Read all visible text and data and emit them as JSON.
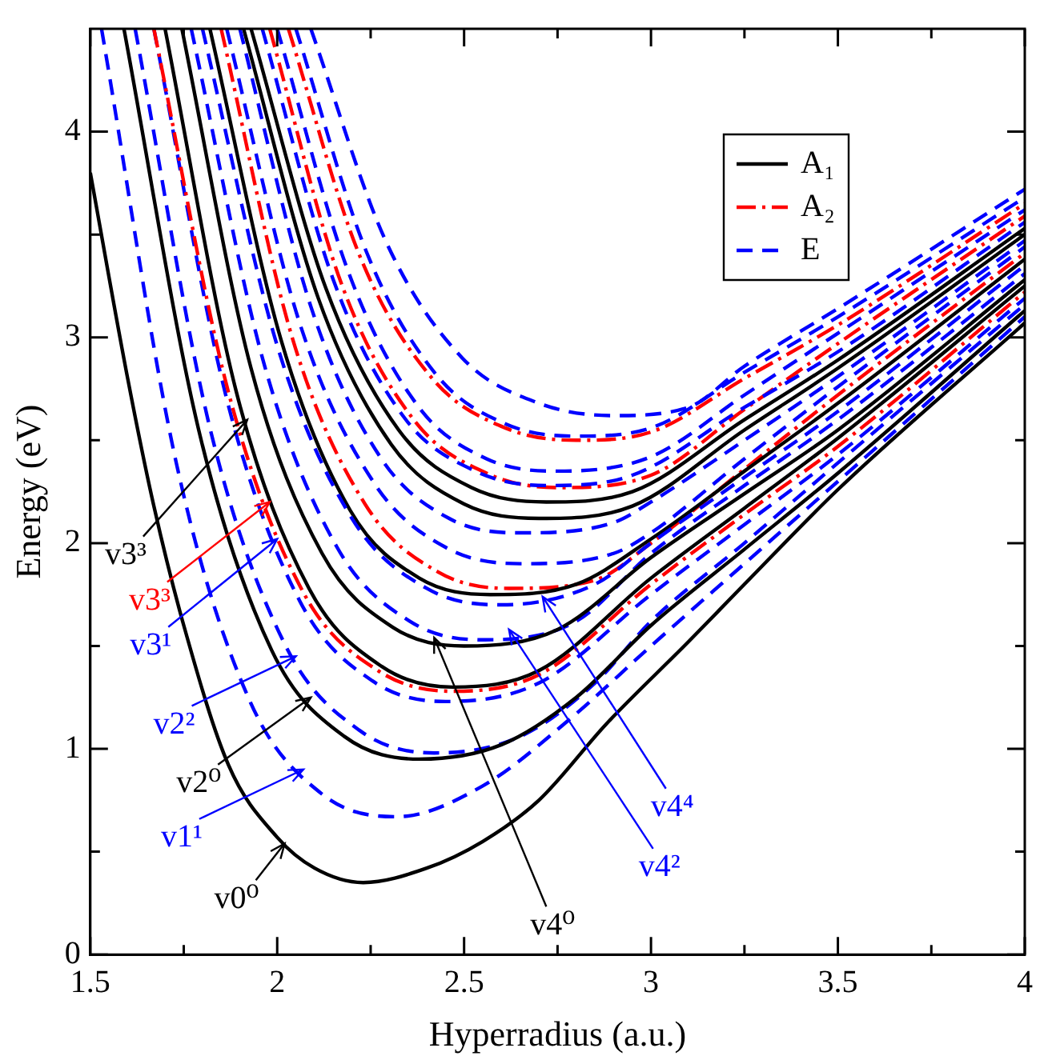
{
  "chart_data": {
    "type": "line",
    "xlabel": "Hyperradius (a.u.)",
    "ylabel": "Energy (eV)",
    "xlim": [
      1.5,
      4
    ],
    "ylim": [
      0,
      4.5
    ],
    "xticks": [
      1.5,
      {
        "value": 1.75,
        "label": null
      },
      2,
      {
        "value": 2.25,
        "label": null
      },
      2.5,
      {
        "value": 2.75,
        "label": null
      },
      3,
      {
        "value": 3.25,
        "label": null
      },
      3.5,
      {
        "value": 3.75,
        "label": null
      },
      4
    ],
    "yticks": [
      0,
      {
        "value": 0.5,
        "label": null
      },
      1,
      {
        "value": 1.5,
        "label": null
      },
      2,
      {
        "value": 2.5,
        "label": null
      },
      3,
      {
        "value": 3.5,
        "label": null
      },
      4
    ],
    "grid": false,
    "legend": "top right",
    "marker": "none",
    "series": [
      {
        "name": "A₁",
        "color": "#000000",
        "line_style": "solid",
        "x": [
          1.5,
          1.6,
          1.67,
          1.75,
          1.87,
          2.0,
          2.1,
          2.23,
          2.4,
          2.55,
          2.7,
          2.88,
          3.1,
          3.25,
          3.5,
          4.0
        ],
        "values": [
          3.8,
          2.8,
          2.18,
          1.6,
          0.92,
          0.57,
          0.42,
          0.35,
          0.42,
          0.55,
          0.75,
          1.12,
          1.52,
          1.8,
          2.26,
          3.07
        ]
      },
      {
        "name": "A₂",
        "color": "#ff0000",
        "line_style": "dashdot",
        "x": [
          1.67,
          1.87,
          2.07,
          2.27,
          2.47,
          2.7,
          3.0,
          3.25,
          3.5,
          4.0
        ],
        "values": [
          4.5,
          2.73,
          1.76,
          1.38,
          1.28,
          1.36,
          1.8,
          2.14,
          2.47,
          3.22
        ]
      },
      {
        "name": "E",
        "color": "#0000ff",
        "line_style": "dashed",
        "x": [
          1.53,
          1.73,
          1.925,
          2.12,
          2.32,
          2.55,
          2.78,
          3.0,
          3.25,
          3.5,
          4.0
        ],
        "values": [
          4.5,
          2.39,
          1.24,
          0.78,
          0.67,
          0.82,
          1.14,
          1.5,
          1.9,
          2.3,
          3.1
        ]
      },
      {
        "color": "#000000",
        "line_style": "solid",
        "x": [
          1.59,
          1.79,
          1.985,
          2.18,
          2.38,
          2.6,
          2.8,
          3.0,
          3.25,
          3.5,
          4.0
        ],
        "values": [
          4.5,
          2.55,
          1.48,
          1.06,
          0.95,
          1.02,
          1.25,
          1.6,
          1.97,
          2.34,
          3.13
        ]
      },
      {
        "color": "#0000ff",
        "line_style": "dashed",
        "x": [
          1.62,
          1.82,
          2.02,
          2.22,
          2.42,
          2.65,
          2.85,
          3.0,
          3.25,
          3.5,
          4.0
        ],
        "values": [
          4.5,
          2.56,
          1.51,
          1.09,
          0.98,
          1.06,
          1.32,
          1.62,
          2.0,
          2.39,
          3.16
        ]
      },
      {
        "color": "#0000ff",
        "line_style": "dashed",
        "x": [
          1.67,
          1.865,
          2.06,
          2.255,
          2.45,
          2.7,
          3.0,
          3.25,
          3.5,
          4.0
        ],
        "values": [
          4.5,
          2.7,
          1.72,
          1.33,
          1.23,
          1.32,
          1.75,
          2.09,
          2.43,
          3.19
        ]
      },
      {
        "color": "#000000",
        "line_style": "solid",
        "x": [
          1.7,
          1.89,
          2.085,
          2.28,
          2.47,
          2.7,
          3.0,
          3.25,
          3.5,
          4.0
        ],
        "values": [
          4.5,
          2.74,
          1.78,
          1.4,
          1.3,
          1.38,
          1.83,
          2.17,
          2.51,
          3.25
        ]
      },
      {
        "color": "#000000",
        "line_style": "solid",
        "x": [
          1.745,
          1.93,
          2.12,
          2.31,
          2.5,
          2.75,
          3.0,
          3.25,
          3.5,
          4.0
        ],
        "values": [
          4.5,
          2.85,
          1.95,
          1.59,
          1.5,
          1.58,
          1.93,
          2.24,
          2.55,
          3.28
        ]
      },
      {
        "color": "#0000ff",
        "line_style": "dashed",
        "x": [
          1.77,
          1.965,
          2.16,
          2.355,
          2.55,
          2.8,
          3.0,
          3.25,
          3.5,
          4.0
        ],
        "values": [
          4.5,
          2.87,
          1.98,
          1.62,
          1.53,
          1.62,
          1.95,
          2.28,
          2.6,
          3.31
        ]
      },
      {
        "color": "#0000ff",
        "line_style": "dashed",
        "x": [
          1.8,
          2.0,
          2.2,
          2.4,
          2.6,
          2.85,
          3.0,
          3.25,
          3.5,
          4.0
        ],
        "values": [
          4.5,
          2.96,
          2.12,
          1.78,
          1.7,
          1.8,
          2.0,
          2.32,
          2.64,
          3.35
        ]
      },
      {
        "color": "#000000",
        "line_style": "solid",
        "x": [
          1.82,
          2.01,
          2.195,
          2.38,
          2.57,
          2.8,
          3.0,
          3.25,
          3.5,
          4.0
        ],
        "values": [
          4.5,
          2.99,
          2.16,
          1.83,
          1.75,
          1.8,
          2.02,
          2.35,
          2.68,
          3.38
        ]
      },
      {
        "color": "#ff0000",
        "line_style": "dashdot",
        "x": [
          1.85,
          2.04,
          2.235,
          2.43,
          2.62,
          2.85,
          3.0,
          3.25,
          3.5,
          4.0
        ],
        "values": [
          4.5,
          3.0,
          2.19,
          1.86,
          1.78,
          1.82,
          2.0,
          2.36,
          2.72,
          3.41
        ]
      },
      {
        "color": "#0000ff",
        "line_style": "dashed",
        "x": [
          1.865,
          2.06,
          2.26,
          2.45,
          2.65,
          2.9,
          3.0,
          3.25,
          3.5,
          4.0
        ],
        "values": [
          4.5,
          3.07,
          2.29,
          1.98,
          1.9,
          1.95,
          2.05,
          2.41,
          2.76,
          3.44
        ]
      },
      {
        "color": "#0000ff",
        "line_style": "dashed",
        "x": [
          1.9,
          2.09,
          2.275,
          2.46,
          2.65,
          2.9,
          3.0,
          3.25,
          3.5,
          4.0
        ],
        "values": [
          4.5,
          3.15,
          2.42,
          2.12,
          2.05,
          2.1,
          2.2,
          2.5,
          2.81,
          3.47
        ]
      },
      {
        "color": "#000000",
        "line_style": "solid",
        "x": [
          1.91,
          2.11,
          2.305,
          2.5,
          2.7,
          2.95,
          3.25,
          3.5,
          4.0
        ],
        "values": [
          4.5,
          3.19,
          2.48,
          2.19,
          2.12,
          2.18,
          2.55,
          2.85,
          3.5
        ]
      },
      {
        "color": "#000000",
        "line_style": "solid",
        "x": [
          1.93,
          2.13,
          2.325,
          2.52,
          2.72,
          2.95,
          3.25,
          3.5,
          4.0
        ],
        "values": [
          4.5,
          3.24,
          2.55,
          2.27,
          2.2,
          2.25,
          2.6,
          2.89,
          3.53
        ]
      },
      {
        "color": "#0000ff",
        "line_style": "dashed",
        "x": [
          1.96,
          2.15,
          2.34,
          2.53,
          2.72,
          2.95,
          3.25,
          3.5,
          4.0
        ],
        "values": [
          4.5,
          3.28,
          2.61,
          2.35,
          2.28,
          2.33,
          2.66,
          2.93,
          3.56
        ]
      },
      {
        "color": "#ff0000",
        "line_style": "dashdot",
        "x": [
          1.98,
          2.17,
          2.365,
          2.56,
          2.75,
          3.0,
          3.25,
          3.5,
          4.0
        ],
        "values": [
          4.5,
          3.27,
          2.6,
          2.34,
          2.27,
          2.33,
          2.65,
          2.97,
          3.59
        ]
      },
      {
        "color": "#0000ff",
        "line_style": "dashed",
        "x": [
          2.0,
          2.19,
          2.375,
          2.56,
          2.75,
          3.0,
          3.25,
          3.5,
          4.0
        ],
        "values": [
          4.5,
          3.32,
          2.67,
          2.41,
          2.35,
          2.42,
          2.72,
          3.02,
          3.62
        ]
      },
      {
        "color": "#ff0000",
        "line_style": "dashdot",
        "x": [
          2.03,
          2.22,
          2.415,
          2.61,
          2.8,
          3.0,
          3.25,
          3.5,
          4.0
        ],
        "values": [
          4.5,
          3.4,
          2.8,
          2.56,
          2.5,
          2.54,
          2.8,
          3.06,
          3.65
        ]
      },
      {
        "color": "#0000ff",
        "line_style": "dashed",
        "x": [
          2.05,
          2.24,
          2.425,
          2.61,
          2.8,
          3.0,
          3.25,
          3.5,
          4.0
        ],
        "values": [
          4.5,
          3.41,
          2.82,
          2.58,
          2.52,
          2.56,
          2.83,
          3.1,
          3.68
        ]
      },
      {
        "color": "#0000ff",
        "line_style": "dashed",
        "x": [
          2.09,
          2.29,
          2.495,
          2.7,
          2.9,
          3.1,
          3.25,
          3.5,
          4.0
        ],
        "values": [
          4.5,
          3.47,
          2.9,
          2.68,
          2.62,
          2.66,
          2.86,
          3.14,
          3.72
        ]
      }
    ],
    "annotations": [
      {
        "text": "v3³",
        "x": 1.92,
        "y": 2.6
      },
      {
        "text": "v3³",
        "x": 1.98,
        "y": 2.2
      },
      {
        "text": "v3¹",
        "x": 2.0,
        "y": 2.02
      },
      {
        "text": "v2²",
        "x": 2.05,
        "y": 1.45
      },
      {
        "text": "v2⁰",
        "x": 2.09,
        "y": 1.25
      },
      {
        "text": "v1¹",
        "x": 2.07,
        "y": 0.9
      },
      {
        "text": "v0⁰",
        "x": 2.02,
        "y": 0.54
      },
      {
        "text": "v4⁰",
        "x": 2.42,
        "y": 1.54
      },
      {
        "text": "v4²",
        "x": 2.62,
        "y": 1.58
      },
      {
        "text": "v4⁴",
        "x": 2.71,
        "y": 1.74
      }
    ]
  }
}
